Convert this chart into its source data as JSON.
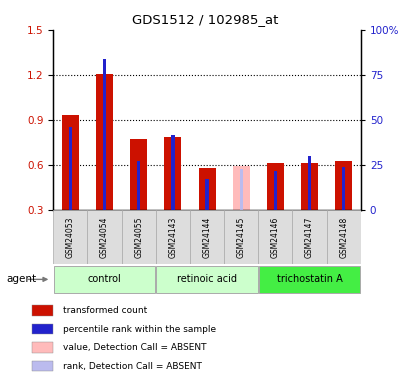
{
  "title": "GDS1512 / 102985_at",
  "samples": [
    "GSM24053",
    "GSM24054",
    "GSM24055",
    "GSM24143",
    "GSM24144",
    "GSM24145",
    "GSM24146",
    "GSM24147",
    "GSM24148"
  ],
  "red_values": [
    0.935,
    1.205,
    0.775,
    0.79,
    0.58,
    0.0,
    0.615,
    0.615,
    0.63
  ],
  "blue_values": [
    0.855,
    1.31,
    0.625,
    0.8,
    0.51,
    0.0,
    0.56,
    0.66,
    0.59
  ],
  "pink_values": [
    0.0,
    0.0,
    0.0,
    0.0,
    0.0,
    0.595,
    0.0,
    0.0,
    0.0
  ],
  "lightblue_values": [
    0.0,
    0.0,
    0.0,
    0.0,
    0.0,
    0.575,
    0.0,
    0.0,
    0.0
  ],
  "absent": [
    false,
    false,
    false,
    false,
    false,
    true,
    false,
    false,
    false
  ],
  "groups": [
    {
      "label": "control",
      "indices": [
        0,
        1,
        2
      ],
      "color": "#ccffcc"
    },
    {
      "label": "retinoic acid",
      "indices": [
        3,
        4,
        5
      ],
      "color": "#ccffcc"
    },
    {
      "label": "trichostatin A",
      "indices": [
        6,
        7,
        8
      ],
      "color": "#44ee44"
    }
  ],
  "ylim_left": [
    0.3,
    1.5
  ],
  "ylim_right": [
    0,
    100
  ],
  "yticks_left": [
    0.3,
    0.6,
    0.9,
    1.2,
    1.5
  ],
  "yticks_right": [
    0,
    25,
    50,
    75,
    100
  ],
  "ytick_labels_right": [
    "0",
    "25",
    "50",
    "75",
    "100%"
  ],
  "hlines": [
    0.6,
    0.9,
    1.2
  ],
  "red_color": "#cc1100",
  "blue_color": "#2222cc",
  "pink_color": "#ffbbbb",
  "lightblue_color": "#bbbbee",
  "legend": [
    {
      "label": "transformed count",
      "color": "#cc1100"
    },
    {
      "label": "percentile rank within the sample",
      "color": "#2222cc"
    },
    {
      "label": "value, Detection Call = ABSENT",
      "color": "#ffbbbb"
    },
    {
      "label": "rank, Detection Call = ABSENT",
      "color": "#bbbbee"
    }
  ]
}
